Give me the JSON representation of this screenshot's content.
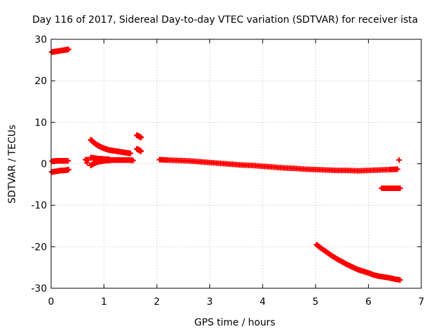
{
  "chart_data": {
    "type": "scatter",
    "title": "Day 116 of 2017, Sidereal Day-to-day VTEC variation (SDTVAR) for receiver ista",
    "xlabel": "GPS time / hours",
    "ylabel": "SDTVAR / TECUs",
    "xlim": [
      0,
      7
    ],
    "ylim": [
      -30,
      30
    ],
    "xticks": [
      "0",
      "1",
      "2",
      "3",
      "4",
      "5",
      "6",
      "7"
    ],
    "yticks": [
      "30",
      "20",
      "10",
      "0",
      "-10",
      "-20",
      "-30"
    ],
    "grid": true,
    "grid_style": "dotted",
    "marker": "plus",
    "colors": {
      "series": "#ff0000",
      "grid": "#bbbbbb",
      "axis": "#000000"
    },
    "series": [
      {
        "values_note": "",
        "points": [
          [
            0.01,
            26.9
          ],
          [
            0.05,
            27.0
          ],
          [
            0.1,
            27.1
          ],
          [
            0.15,
            27.2
          ],
          [
            0.2,
            27.3
          ],
          [
            0.25,
            27.4
          ],
          [
            0.3,
            27.5
          ],
          [
            0.33,
            27.6
          ],
          [
            0.02,
            0.6
          ],
          [
            0.08,
            0.7
          ],
          [
            0.14,
            0.7
          ],
          [
            0.2,
            0.7
          ],
          [
            0.26,
            0.7
          ],
          [
            0.32,
            0.7
          ],
          [
            0.01,
            -2.0
          ],
          [
            0.05,
            -1.9
          ],
          [
            0.1,
            -1.8
          ],
          [
            0.15,
            -1.7
          ],
          [
            0.2,
            -1.6
          ],
          [
            0.25,
            -1.6
          ],
          [
            0.3,
            -1.5
          ],
          [
            0.33,
            -1.4
          ],
          [
            0.65,
            1.0
          ],
          [
            0.7,
            0.9
          ],
          [
            0.68,
            0.2
          ],
          [
            0.75,
            5.8
          ],
          [
            0.8,
            5.2
          ],
          [
            0.85,
            4.7
          ],
          [
            0.9,
            4.3
          ],
          [
            0.95,
            4.0
          ],
          [
            1.0,
            3.7
          ],
          [
            1.05,
            3.5
          ],
          [
            1.1,
            3.3
          ],
          [
            1.15,
            3.2
          ],
          [
            1.2,
            3.1
          ],
          [
            1.25,
            3.0
          ],
          [
            1.3,
            2.9
          ],
          [
            1.35,
            2.8
          ],
          [
            1.4,
            2.7
          ],
          [
            1.45,
            2.6
          ],
          [
            1.5,
            2.5
          ],
          [
            0.75,
            -0.4
          ],
          [
            0.8,
            0.0
          ],
          [
            0.85,
            0.3
          ],
          [
            0.9,
            0.5
          ],
          [
            0.95,
            0.6
          ],
          [
            1.0,
            0.7
          ],
          [
            1.05,
            0.8
          ],
          [
            1.1,
            0.8
          ],
          [
            1.15,
            0.9
          ],
          [
            1.2,
            0.9
          ],
          [
            1.25,
            0.9
          ],
          [
            1.3,
            0.9
          ],
          [
            1.35,
            0.9
          ],
          [
            1.4,
            0.9
          ],
          [
            1.45,
            0.9
          ],
          [
            1.5,
            0.9
          ],
          [
            1.55,
            0.8
          ],
          [
            0.75,
            1.5
          ],
          [
            0.8,
            1.4
          ],
          [
            0.85,
            1.3
          ],
          [
            0.9,
            1.2
          ],
          [
            0.95,
            1.2
          ],
          [
            1.0,
            1.1
          ],
          [
            1.05,
            1.1
          ],
          [
            1.1,
            1.1
          ],
          [
            1.62,
            6.9
          ],
          [
            1.65,
            6.7
          ],
          [
            1.68,
            6.5
          ],
          [
            1.7,
            6.3
          ],
          [
            1.62,
            3.6
          ],
          [
            1.65,
            3.4
          ],
          [
            1.68,
            3.2
          ],
          [
            1.7,
            3.0
          ],
          [
            2.05,
            1.0
          ],
          [
            2.2,
            0.9
          ],
          [
            2.4,
            0.8
          ],
          [
            2.6,
            0.7
          ],
          [
            2.8,
            0.5
          ],
          [
            3.0,
            0.3
          ],
          [
            3.2,
            0.1
          ],
          [
            3.4,
            -0.1
          ],
          [
            3.6,
            -0.3
          ],
          [
            3.8,
            -0.4
          ],
          [
            4.0,
            -0.6
          ],
          [
            4.2,
            -0.8
          ],
          [
            4.4,
            -1.0
          ],
          [
            4.6,
            -1.1
          ],
          [
            4.8,
            -1.3
          ],
          [
            5.0,
            -1.4
          ],
          [
            5.2,
            -1.5
          ],
          [
            5.4,
            -1.6
          ],
          [
            5.6,
            -1.6
          ],
          [
            5.8,
            -1.7
          ],
          [
            6.0,
            -1.6
          ],
          [
            6.2,
            -1.5
          ],
          [
            6.4,
            -1.4
          ],
          [
            6.55,
            -1.3
          ],
          [
            6.58,
            0.9
          ],
          [
            6.25,
            -5.9
          ],
          [
            6.3,
            -5.9
          ],
          [
            6.35,
            -5.9
          ],
          [
            6.4,
            -5.9
          ],
          [
            6.45,
            -5.9
          ],
          [
            6.5,
            -5.9
          ],
          [
            6.55,
            -5.9
          ],
          [
            6.6,
            -5.9
          ],
          [
            5.02,
            -19.5
          ],
          [
            5.1,
            -20.3
          ],
          [
            5.2,
            -21.2
          ],
          [
            5.3,
            -22.1
          ],
          [
            5.4,
            -22.9
          ],
          [
            5.5,
            -23.6
          ],
          [
            5.6,
            -24.3
          ],
          [
            5.7,
            -24.9
          ],
          [
            5.8,
            -25.5
          ],
          [
            5.9,
            -25.9
          ],
          [
            6.0,
            -26.3
          ],
          [
            6.1,
            -26.8
          ],
          [
            6.2,
            -27.1
          ],
          [
            6.3,
            -27.3
          ],
          [
            6.4,
            -27.5
          ],
          [
            6.5,
            -27.8
          ],
          [
            6.6,
            -28.0
          ]
        ]
      }
    ]
  }
}
